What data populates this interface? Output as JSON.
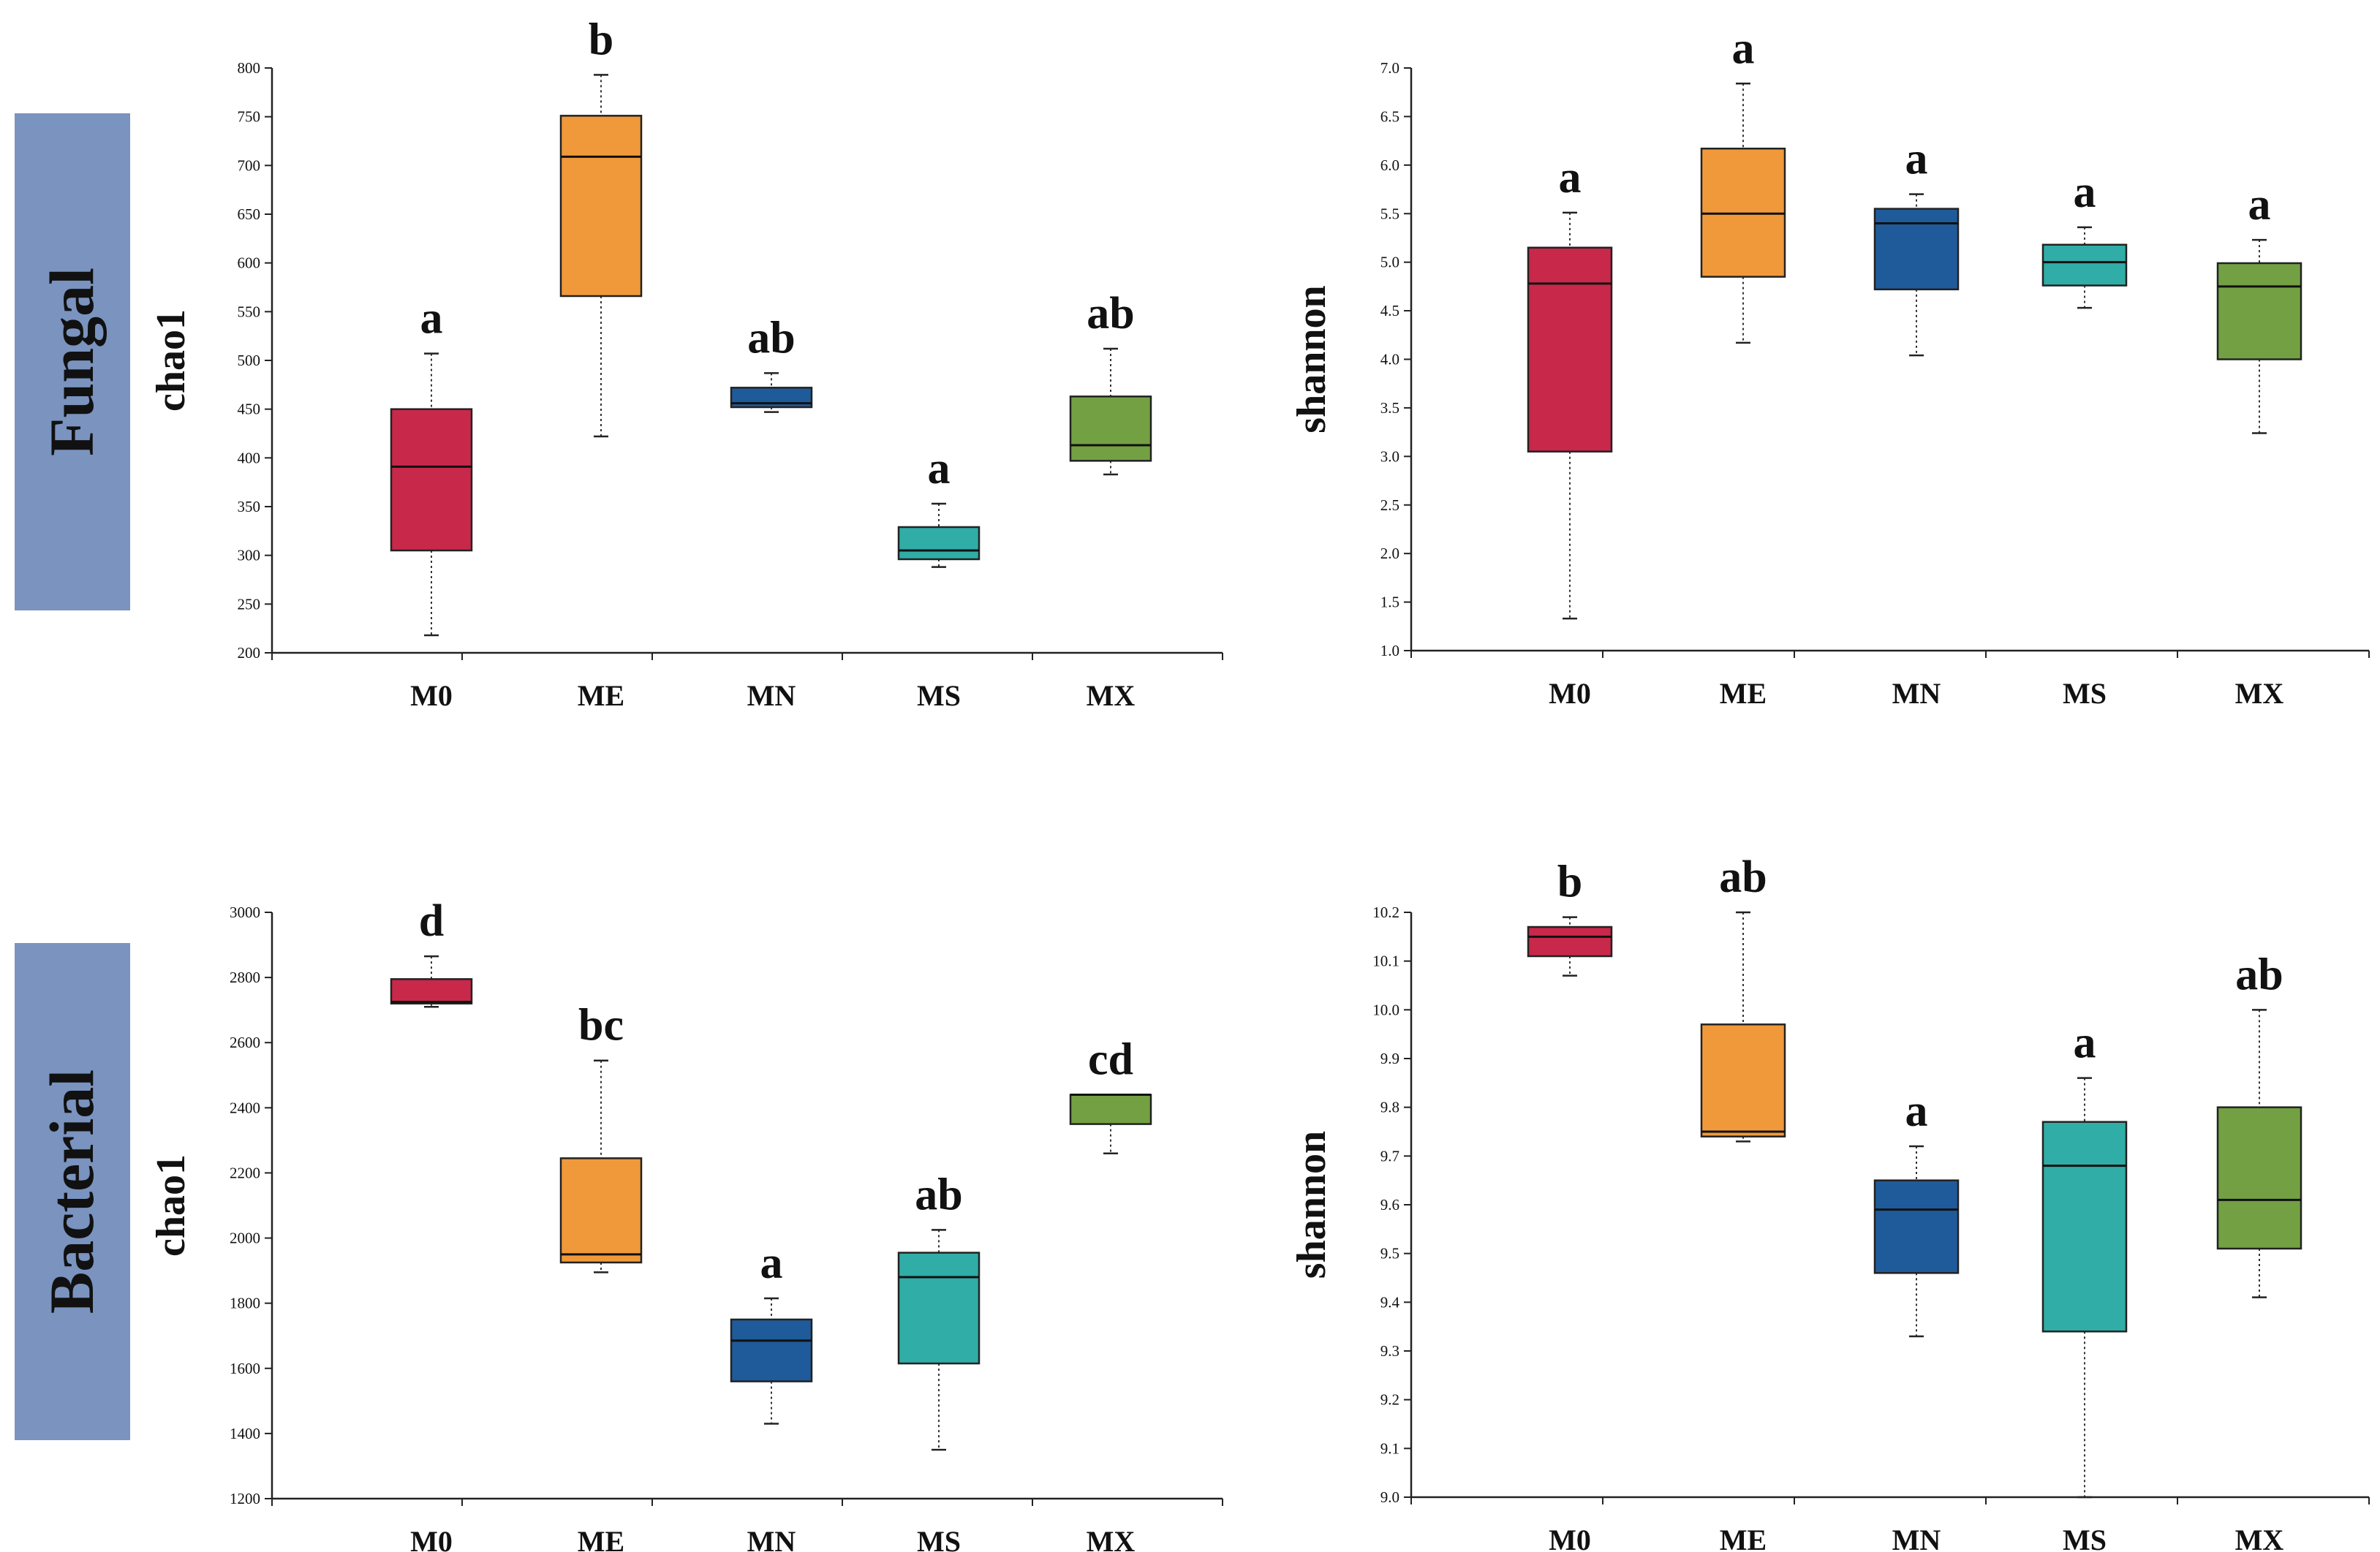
{
  "row_labels": [
    {
      "text": "Fungal",
      "color": "#7a93bf"
    },
    {
      "text": "Bacterial",
      "color": "#7a93bf"
    }
  ],
  "colors": {
    "M0": "#c8284a",
    "ME": "#f0993a",
    "MN": "#1f5b9a",
    "MS": "#30ada6",
    "MX": "#72a043"
  },
  "chart_data": [
    {
      "type": "box",
      "panel": "Fungal chao1",
      "ylabel": "chao1",
      "ylim": [
        200,
        800
      ],
      "yticks": [
        200,
        250,
        300,
        350,
        400,
        450,
        500,
        550,
        600,
        650,
        700,
        750,
        800
      ],
      "categories": [
        "M0",
        "ME",
        "MN",
        "MS",
        "MX"
      ],
      "boxes": [
        {
          "cat": "M0",
          "min": 218,
          "q1": 305,
          "median": 391,
          "q3": 450,
          "max": 507,
          "letter": "a"
        },
        {
          "cat": "ME",
          "min": 422,
          "q1": 566,
          "median": 709,
          "q3": 751,
          "max": 793,
          "letter": "b"
        },
        {
          "cat": "MN",
          "min": 447,
          "q1": 452,
          "median": 456,
          "q3": 472,
          "max": 487,
          "letter": "ab"
        },
        {
          "cat": "MS",
          "min": 288,
          "q1": 296,
          "median": 305,
          "q3": 329,
          "max": 353,
          "letter": "a"
        },
        {
          "cat": "MX",
          "min": 383,
          "q1": 397,
          "median": 413,
          "q3": 463,
          "max": 512,
          "letter": "ab"
        }
      ]
    },
    {
      "type": "box",
      "panel": "Fungal shannon",
      "ylabel": "shannon",
      "ylim": [
        1.0,
        7.0
      ],
      "yticks": [
        "1.0",
        "1.5",
        "2.0",
        "2.5",
        "3.0",
        "3.5",
        "4.0",
        "4.5",
        "5.0",
        "5.5",
        "6.0",
        "6.5",
        "7.0"
      ],
      "categories": [
        "M0",
        "ME",
        "MN",
        "MS",
        "MX"
      ],
      "boxes": [
        {
          "cat": "M0",
          "min": 1.33,
          "q1": 3.05,
          "median": 4.78,
          "q3": 5.15,
          "max": 5.51,
          "letter": "a"
        },
        {
          "cat": "ME",
          "min": 4.17,
          "q1": 4.85,
          "median": 5.5,
          "q3": 6.17,
          "max": 6.84,
          "letter": "a"
        },
        {
          "cat": "MN",
          "min": 4.04,
          "q1": 4.72,
          "median": 5.4,
          "q3": 5.55,
          "max": 5.7,
          "letter": "a"
        },
        {
          "cat": "MS",
          "min": 4.53,
          "q1": 4.76,
          "median": 5.0,
          "q3": 5.18,
          "max": 5.36,
          "letter": "a"
        },
        {
          "cat": "MX",
          "min": 3.24,
          "q1": 4.0,
          "median": 4.75,
          "q3": 4.99,
          "max": 5.23,
          "letter": "a"
        }
      ]
    },
    {
      "type": "box",
      "panel": "Bacterial chao1",
      "ylabel": "chao1",
      "ylim": [
        1200,
        3000
      ],
      "yticks": [
        1200,
        1400,
        1600,
        1800,
        2000,
        2200,
        2400,
        2600,
        2800,
        3000
      ],
      "categories": [
        "M0",
        "ME",
        "MN",
        "MS",
        "MX"
      ],
      "boxes": [
        {
          "cat": "M0",
          "min": 2710,
          "q1": 2720,
          "median": 2725,
          "q3": 2795,
          "max": 2865,
          "letter": "d"
        },
        {
          "cat": "ME",
          "min": 1895,
          "q1": 1925,
          "median": 1950,
          "q3": 2245,
          "max": 2545,
          "letter": "bc"
        },
        {
          "cat": "MN",
          "min": 1430,
          "q1": 1560,
          "median": 1685,
          "q3": 1750,
          "max": 1815,
          "letter": "a"
        },
        {
          "cat": "MS",
          "min": 1350,
          "q1": 1615,
          "median": 1880,
          "q3": 1955,
          "max": 2025,
          "letter": "ab"
        },
        {
          "cat": "MX",
          "min": 2260,
          "q1": 2350,
          "median": 2440,
          "q3": 2440,
          "max": 2440,
          "letter": "cd"
        }
      ]
    },
    {
      "type": "box",
      "panel": "Bacterial shannon",
      "ylabel": "shannon",
      "ylim": [
        9.0,
        10.2
      ],
      "yticks": [
        "9.0",
        "9.1",
        "9.2",
        "9.3",
        "9.4",
        "9.5",
        "9.6",
        "9.7",
        "9.8",
        "9.9",
        "10.0",
        "10.1",
        "10.2"
      ],
      "categories": [
        "M0",
        "ME",
        "MN",
        "MS",
        "MX"
      ],
      "boxes": [
        {
          "cat": "M0",
          "min": 10.07,
          "q1": 10.11,
          "median": 10.15,
          "q3": 10.17,
          "max": 10.19,
          "letter": "b"
        },
        {
          "cat": "ME",
          "min": 9.73,
          "q1": 9.74,
          "median": 9.75,
          "q3": 9.97,
          "max": 10.2,
          "letter": "ab"
        },
        {
          "cat": "MN",
          "min": 9.33,
          "q1": 9.46,
          "median": 9.59,
          "q3": 9.65,
          "max": 9.72,
          "letter": "a"
        },
        {
          "cat": "MS",
          "min": 9.0,
          "q1": 9.34,
          "median": 9.68,
          "q3": 9.77,
          "max": 9.86,
          "letter": "a"
        },
        {
          "cat": "MX",
          "min": 9.41,
          "q1": 9.51,
          "median": 9.61,
          "q3": 9.8,
          "max": 10.0,
          "letter": "ab"
        }
      ]
    }
  ]
}
